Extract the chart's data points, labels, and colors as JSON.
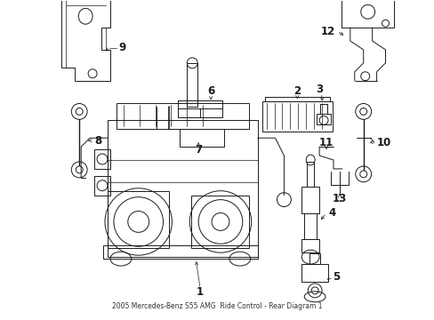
{
  "background_color": "#ffffff",
  "line_color": "#1a1a1a",
  "figsize": [
    4.89,
    3.6
  ],
  "dpi": 100,
  "label_fontsize": 8.5,
  "arrow_lw": 0.5,
  "part_lw": 0.7
}
